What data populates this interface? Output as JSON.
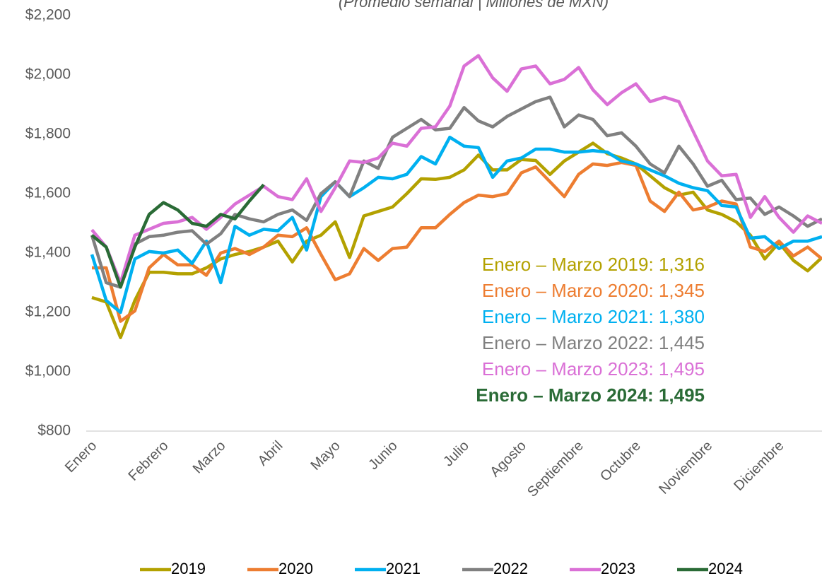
{
  "chart_data": {
    "type": "line",
    "subtitle": "(Promedio semanal | Millones de MXN)",
    "categories": [
      "Enero",
      null,
      null,
      null,
      null,
      "Febrero",
      null,
      null,
      null,
      "Marzo",
      null,
      null,
      null,
      "Abril",
      null,
      null,
      null,
      "Mayo",
      null,
      null,
      null,
      "Junio",
      null,
      null,
      null,
      null,
      "Julio",
      null,
      null,
      null,
      "Agosto",
      null,
      null,
      null,
      "Septiembre",
      null,
      null,
      null,
      "Octubre",
      null,
      null,
      null,
      null,
      "Noviembre",
      null,
      null,
      null,
      null,
      "Diciembre",
      null,
      null,
      null
    ],
    "ylim": [
      800,
      2200
    ],
    "yticks": [
      {
        "value": 800,
        "label": "$800"
      },
      {
        "value": 1000,
        "label": "$1,000"
      },
      {
        "value": 1200,
        "label": "$1,200"
      },
      {
        "value": 1400,
        "label": "$1,400"
      },
      {
        "value": 1600,
        "label": "$1,600"
      },
      {
        "value": 1800,
        "label": "$1,800"
      },
      {
        "value": 2000,
        "label": "$2,000"
      },
      {
        "value": 2200,
        "label": "$2,200"
      }
    ],
    "grid": false,
    "legend": "bottom",
    "series": [
      {
        "name": "2019",
        "color": "#b3a100",
        "values": [
          1250,
          1235,
          1115,
          1240,
          1335,
          1335,
          1330,
          1330,
          1350,
          1380,
          1395,
          1405,
          1420,
          1440,
          1370,
          1440,
          1460,
          1505,
          1385,
          1525,
          1540,
          1555,
          1600,
          1650,
          1648,
          1655,
          1680,
          1730,
          1680,
          1680,
          1715,
          1712,
          1665,
          1710,
          1740,
          1770,
          1735,
          1720,
          1700,
          1660,
          1620,
          1595,
          1605,
          1545,
          1530,
          1505,
          1460,
          1380,
          1435,
          1375,
          1340,
          1385
        ]
      },
      {
        "name": "2020",
        "color": "#ed7d31",
        "values": [
          1350,
          1350,
          1170,
          1205,
          1350,
          1395,
          1360,
          1360,
          1325,
          1400,
          1415,
          1395,
          1420,
          1460,
          1455,
          1485,
          1395,
          1310,
          1330,
          1415,
          1375,
          1415,
          1420,
          1485,
          1485,
          1530,
          1570,
          1595,
          1590,
          1600,
          1670,
          1690,
          1640,
          1590,
          1665,
          1700,
          1695,
          1705,
          1695,
          1575,
          1540,
          1605,
          1545,
          1555,
          1575,
          1565,
          1420,
          1405,
          1440,
          1390,
          1420,
          1380
        ]
      },
      {
        "name": "2021",
        "color": "#00b0f0",
        "values": [
          1395,
          1240,
          1200,
          1380,
          1405,
          1400,
          1410,
          1365,
          1440,
          1300,
          1490,
          1460,
          1480,
          1475,
          1520,
          1410,
          1590,
          1640,
          1590,
          1620,
          1655,
          1650,
          1665,
          1725,
          1700,
          1790,
          1760,
          1755,
          1655,
          1710,
          1720,
          1750,
          1750,
          1740,
          1740,
          1745,
          1740,
          1710,
          1700,
          1680,
          1660,
          1635,
          1620,
          1610,
          1560,
          1555,
          1450,
          1455,
          1415,
          1440,
          1440,
          1455
        ]
      },
      {
        "name": "2022",
        "color": "#808080",
        "values": [
          1460,
          1300,
          1285,
          1430,
          1455,
          1460,
          1470,
          1475,
          1430,
          1465,
          1530,
          1515,
          1505,
          1530,
          1545,
          1510,
          1600,
          1640,
          1590,
          1710,
          1685,
          1790,
          1820,
          1850,
          1815,
          1820,
          1890,
          1845,
          1825,
          1860,
          1885,
          1910,
          1925,
          1825,
          1865,
          1850,
          1795,
          1805,
          1760,
          1700,
          1670,
          1760,
          1700,
          1625,
          1645,
          1580,
          1585,
          1530,
          1555,
          1525,
          1490,
          1515
        ]
      },
      {
        "name": "2023",
        "color": "#da70d6",
        "values": [
          1478,
          1420,
          1300,
          1460,
          1480,
          1500,
          1505,
          1520,
          1480,
          1520,
          1565,
          1595,
          1625,
          1590,
          1580,
          1650,
          1540,
          1620,
          1710,
          1705,
          1720,
          1770,
          1760,
          1820,
          1825,
          1895,
          2030,
          2065,
          1990,
          1945,
          2020,
          2030,
          1970,
          1985,
          2025,
          1950,
          1900,
          1940,
          1970,
          1910,
          1925,
          1910,
          1810,
          1710,
          1660,
          1665,
          1520,
          1590,
          1520,
          1470,
          1525,
          1500
        ]
      },
      {
        "name": "2024",
        "color": "#2a6b36",
        "values": [
          1460,
          1420,
          1285,
          1420,
          1530,
          1570,
          1545,
          1500,
          1490,
          1530,
          1515,
          1575,
          1630,
          null,
          null,
          null,
          null,
          null,
          null,
          null,
          null,
          null,
          null,
          null,
          null,
          null,
          null,
          null,
          null,
          null,
          null,
          null,
          null,
          null,
          null,
          null,
          null,
          null,
          null,
          null,
          null,
          null,
          null,
          null,
          null,
          null,
          null,
          null,
          null,
          null,
          null,
          null
        ]
      }
    ],
    "annotations": [
      {
        "text": "Enero – Marzo 2019:  1,316",
        "color": "#b3a100",
        "bold": false
      },
      {
        "text": "Enero – Marzo 2020:  1,345",
        "color": "#ed7d31",
        "bold": false
      },
      {
        "text": "Enero – Marzo 2021:  1,380",
        "color": "#00b0f0",
        "bold": false
      },
      {
        "text": "Enero – Marzo 2022:  1,445",
        "color": "#808080",
        "bold": false
      },
      {
        "text": "Enero – Marzo 2023:  1,495",
        "color": "#da70d6",
        "bold": false
      },
      {
        "text": "Enero – Marzo 2024: 1,495",
        "color": "#2a6b36",
        "bold": true
      }
    ]
  }
}
